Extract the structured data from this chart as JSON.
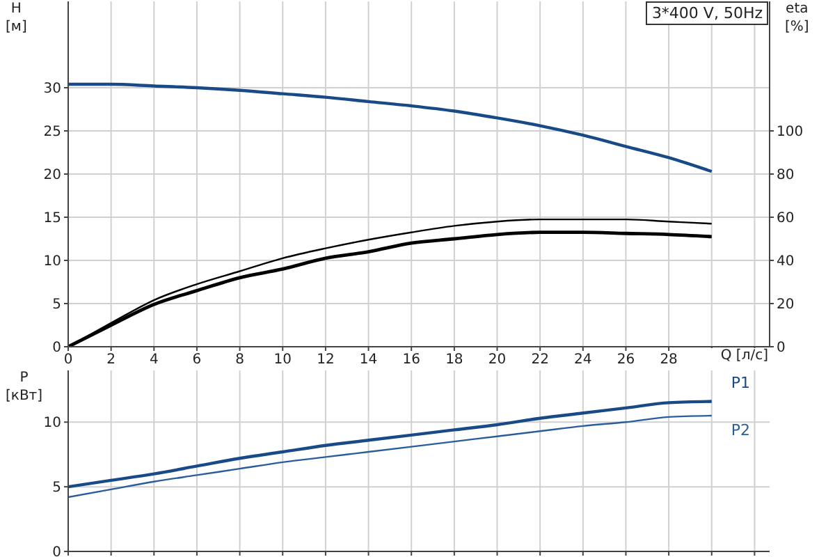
{
  "chart_data": [
    {
      "type": "line",
      "title": "3*400 V, 50Hz",
      "xlabel": "Q [л/с]",
      "ylabel": "H [м]",
      "y2label": "eta [%]",
      "x": [
        0,
        2,
        4,
        6,
        8,
        10,
        12,
        14,
        16,
        18,
        20,
        22,
        24,
        26,
        28,
        30
      ],
      "xlim": [
        0,
        32.7
      ],
      "xticks": [
        0,
        2,
        4,
        6,
        8,
        10,
        12,
        14,
        16,
        18,
        20,
        22,
        24,
        26,
        28,
        {
          "value": 30,
          "label": null
        },
        {
          "value": 32,
          "label": null
        }
      ],
      "ylim": [
        0,
        40
      ],
      "yticks": [
        0,
        5,
        10,
        15,
        20,
        25,
        30
      ],
      "y2lim": [
        0,
        160
      ],
      "y2ticks": [
        0,
        20,
        40,
        60,
        80,
        100
      ],
      "grid": true,
      "series": [
        {
          "color": "#174a87",
          "values": [
            30.4,
            30.4,
            30.2,
            30.0,
            29.7,
            29.3,
            28.9,
            28.4,
            27.9,
            27.3,
            26.5,
            25.6,
            24.5,
            23.2,
            21.9,
            20.3
          ]
        },
        {
          "color": "#000000",
          "axis": "y2",
          "values": [
            0,
            11,
            21.6,
            29,
            35,
            41,
            45.6,
            49.6,
            53,
            56,
            58,
            59,
            59,
            59,
            58,
            57
          ]
        },
        {
          "color": "#000000",
          "axis": "y2",
          "values": [
            0,
            10,
            19.6,
            26,
            32,
            36,
            41,
            44,
            48,
            50,
            52,
            53,
            53,
            52.5,
            52,
            51
          ]
        }
      ]
    },
    {
      "type": "line",
      "ylabel": "P [кВт]",
      "x": [
        0,
        2,
        4,
        6,
        8,
        10,
        12,
        14,
        16,
        18,
        20,
        22,
        24,
        26,
        28,
        30
      ],
      "xlim": [
        0,
        32.7
      ],
      "xticks": [
        0,
        2,
        4,
        6,
        8,
        10,
        12,
        14,
        16,
        18,
        20,
        22,
        24,
        26,
        28,
        30,
        32
      ],
      "ylim": [
        0,
        14
      ],
      "yticks": [
        0,
        5,
        10
      ],
      "grid": true,
      "tick_labels": "y",
      "series": [
        {
          "name": "P1",
          "color": "#174a87",
          "values": [
            5.0,
            5.5,
            6.0,
            6.6,
            7.2,
            7.7,
            8.2,
            8.6,
            9.0,
            9.4,
            9.8,
            10.3,
            10.7,
            11.1,
            11.5,
            11.6
          ]
        },
        {
          "name": "P2",
          "color": "#2a5d9b",
          "values": [
            4.2,
            4.8,
            5.4,
            5.9,
            6.4,
            6.9,
            7.3,
            7.7,
            8.1,
            8.5,
            8.9,
            9.3,
            9.7,
            10.0,
            10.4,
            10.5
          ]
        }
      ]
    }
  ]
}
